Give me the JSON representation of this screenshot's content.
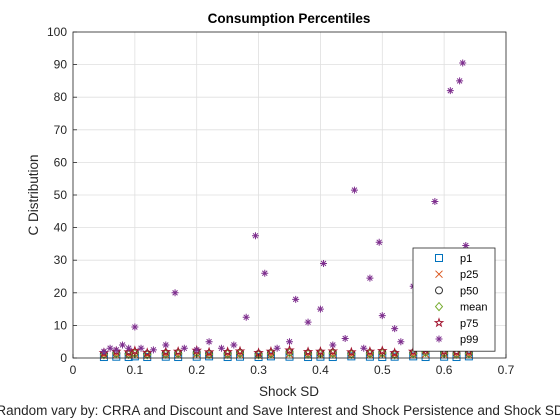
{
  "chart_data": {
    "type": "scatter",
    "title": "Consumption Percentiles",
    "xlabel": "Shock SD",
    "ylabel": "C Distribution",
    "subtitle": "Random vary by: CRRA and Discount and Save Interest and Shock Persistence and Shock SD",
    "xlim": [
      0,
      0.7
    ],
    "ylim": [
      0,
      100
    ],
    "xticks": [
      0,
      0.1,
      0.2,
      0.3,
      0.4,
      0.5,
      0.6,
      0.7
    ],
    "xtick_labels": [
      "0",
      "0.1",
      "0.2",
      "0.3",
      "0.4",
      "0.5",
      "0.6",
      "0.7"
    ],
    "yticks": [
      0,
      10,
      20,
      30,
      40,
      50,
      60,
      70,
      80,
      90,
      100
    ],
    "ytick_labels": [
      "0",
      "10",
      "20",
      "30",
      "40",
      "50",
      "60",
      "70",
      "80",
      "90",
      "100"
    ],
    "grid": true,
    "legend_position": "bottom-right",
    "series": [
      {
        "name": "p1",
        "marker": "square",
        "color": "#0072BD",
        "x": [
          0.05,
          0.07,
          0.09,
          0.1,
          0.12,
          0.15,
          0.17,
          0.2,
          0.22,
          0.25,
          0.27,
          0.3,
          0.32,
          0.35,
          0.38,
          0.4,
          0.42,
          0.45,
          0.48,
          0.5,
          0.52,
          0.55,
          0.57,
          0.6,
          0.62,
          0.64
        ],
        "y": [
          0.3,
          0.4,
          0.3,
          0.5,
          0.3,
          0.4,
          0.3,
          0.4,
          0.5,
          0.3,
          0.4,
          0.3,
          0.5,
          0.4,
          0.3,
          0.4,
          0.3,
          0.5,
          0.4,
          0.3,
          0.4,
          0.5,
          0.3,
          0.4,
          0.3,
          0.5
        ]
      },
      {
        "name": "p25",
        "marker": "x",
        "color": "#D95319",
        "x": [
          0.05,
          0.07,
          0.09,
          0.1,
          0.12,
          0.15,
          0.17,
          0.2,
          0.22,
          0.25,
          0.27,
          0.3,
          0.32,
          0.35,
          0.38,
          0.4,
          0.42,
          0.45,
          0.48,
          0.5,
          0.52,
          0.55,
          0.57,
          0.6,
          0.62,
          0.64
        ],
        "y": [
          0.8,
          1.0,
          0.9,
          1.1,
          0.8,
          1.0,
          0.9,
          1.2,
          1.0,
          0.9,
          1.1,
          0.8,
          1.0,
          1.2,
          0.9,
          1.0,
          1.1,
          0.9,
          1.0,
          1.1,
          0.8,
          1.0,
          1.2,
          1.1,
          0.9,
          1.0
        ]
      },
      {
        "name": "p50",
        "marker": "circle",
        "color": "#333333",
        "x": [
          0.05,
          0.07,
          0.09,
          0.1,
          0.12,
          0.15,
          0.17,
          0.2,
          0.22,
          0.25,
          0.27,
          0.3,
          0.32,
          0.35,
          0.38,
          0.4,
          0.42,
          0.45,
          0.48,
          0.5,
          0.52,
          0.55,
          0.57,
          0.6,
          0.62,
          0.64
        ],
        "y": [
          1.2,
          1.5,
          1.3,
          1.6,
          1.2,
          1.4,
          1.5,
          1.7,
          1.3,
          1.4,
          1.6,
          1.2,
          1.5,
          1.8,
          1.4,
          1.5,
          1.6,
          1.3,
          1.5,
          1.7,
          1.2,
          1.5,
          1.9,
          1.6,
          1.4,
          1.5
        ]
      },
      {
        "name": "mean",
        "marker": "diamond",
        "color": "#77AC30",
        "x": [
          0.05,
          0.07,
          0.09,
          0.1,
          0.12,
          0.15,
          0.17,
          0.2,
          0.22,
          0.25,
          0.27,
          0.3,
          0.32,
          0.35,
          0.38,
          0.4,
          0.42,
          0.45,
          0.48,
          0.5,
          0.52,
          0.55,
          0.57,
          0.6,
          0.62,
          0.64
        ],
        "y": [
          1.0,
          1.3,
          1.1,
          1.4,
          1.0,
          1.2,
          1.3,
          1.5,
          1.1,
          1.2,
          1.4,
          1.0,
          1.3,
          1.6,
          1.2,
          1.3,
          1.4,
          1.1,
          1.3,
          1.5,
          1.0,
          1.3,
          1.7,
          1.4,
          1.2,
          1.3
        ]
      },
      {
        "name": "p75",
        "marker": "pentagram",
        "color": "#A2142F",
        "x": [
          0.05,
          0.07,
          0.09,
          0.1,
          0.12,
          0.15,
          0.17,
          0.2,
          0.22,
          0.25,
          0.27,
          0.3,
          0.32,
          0.35,
          0.38,
          0.4,
          0.42,
          0.45,
          0.48,
          0.5,
          0.52,
          0.55,
          0.57,
          0.6,
          0.62,
          0.64
        ],
        "y": [
          1.6,
          2.0,
          1.8,
          2.2,
          1.6,
          1.9,
          2.0,
          2.3,
          1.8,
          1.9,
          2.1,
          1.6,
          2.0,
          2.4,
          1.9,
          2.0,
          2.1,
          1.8,
          2.0,
          2.2,
          1.6,
          2.0,
          2.5,
          2.1,
          1.9,
          2.0
        ]
      },
      {
        "name": "p99",
        "marker": "asterisk",
        "color": "#7E2F8E",
        "x": [
          0.05,
          0.06,
          0.07,
          0.08,
          0.09,
          0.1,
          0.11,
          0.13,
          0.15,
          0.165,
          0.18,
          0.2,
          0.22,
          0.24,
          0.26,
          0.28,
          0.295,
          0.31,
          0.33,
          0.35,
          0.36,
          0.38,
          0.4,
          0.405,
          0.42,
          0.44,
          0.455,
          0.47,
          0.48,
          0.495,
          0.5,
          0.52,
          0.53,
          0.55,
          0.56,
          0.57,
          0.585,
          0.59,
          0.6,
          0.61,
          0.62,
          0.625,
          0.63,
          0.635,
          0.64,
          0.645
        ],
        "y": [
          2,
          3,
          2.5,
          4,
          3,
          9.5,
          3,
          2.5,
          4,
          20,
          3,
          2.5,
          5,
          3,
          4,
          12.5,
          37.5,
          26,
          3,
          5,
          18,
          11,
          15,
          29,
          4,
          6,
          51.5,
          3,
          24.5,
          35.5,
          13,
          9,
          5,
          22,
          7,
          16,
          48,
          20,
          12,
          82,
          8,
          85,
          90.5,
          34.5,
          10,
          6
        ]
      }
    ]
  }
}
